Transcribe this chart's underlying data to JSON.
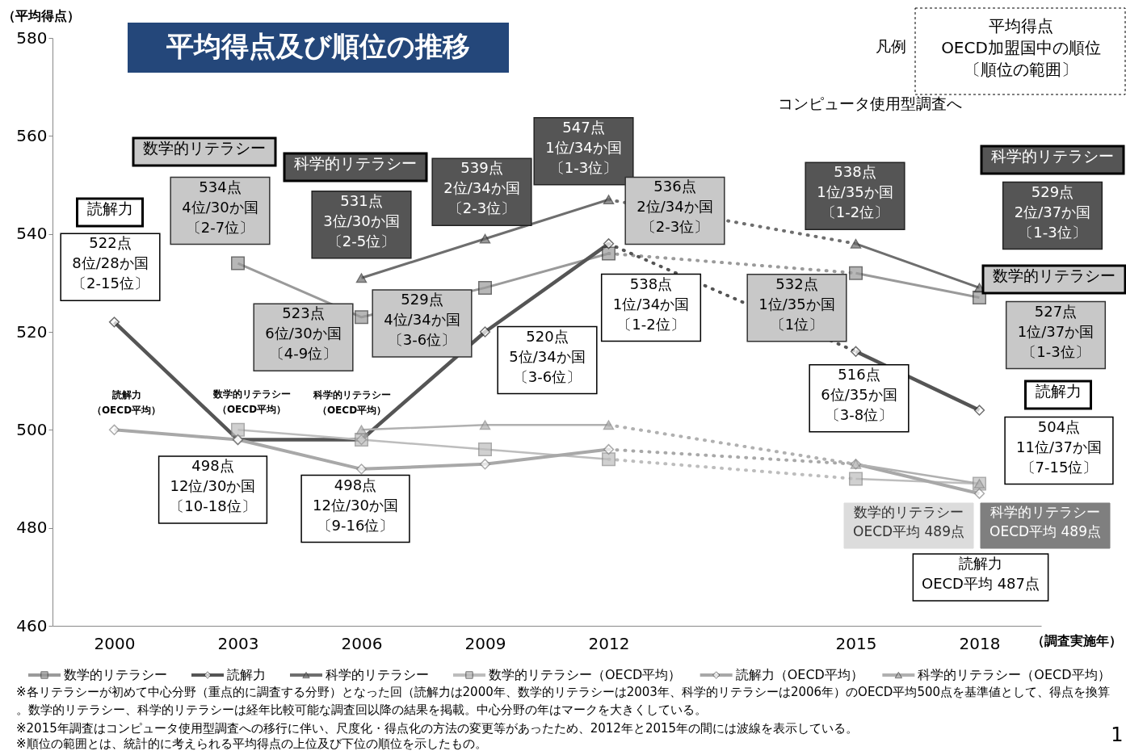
{
  "chart_data": {
    "type": "line",
    "title": "平均得点及び順位の推移",
    "ylabel": "（平均得点）",
    "xlabel": "（調査実施年）",
    "categories": [
      "2000",
      "2003",
      "2006",
      "2009",
      "2012",
      null,
      "2015",
      "2018"
    ],
    "ylim": [
      460,
      580
    ],
    "yticks": [
      460,
      480,
      500,
      520,
      540,
      560,
      580
    ],
    "grid": false,
    "legend": "bottom",
    "series": [
      {
        "name": "数学的リテラシー",
        "color": "#9a9a9a",
        "marker": "square",
        "values": [
          null,
          534,
          523,
          529,
          536,
          null,
          532,
          527
        ]
      },
      {
        "name": "読解力",
        "color": "#555555",
        "marker": "diamond",
        "values": [
          522,
          498,
          498,
          520,
          538,
          null,
          516,
          504
        ]
      },
      {
        "name": "科学的リテラシー",
        "color": "#6e6e6e",
        "marker": "triangle",
        "values": [
          null,
          null,
          531,
          539,
          547,
          null,
          538,
          529
        ]
      },
      {
        "name": "数学的リテラシー（OECD平均）",
        "color": "#bdbdbd",
        "marker": "square",
        "values": [
          null,
          500,
          498,
          496,
          494,
          null,
          490,
          489
        ]
      },
      {
        "name": "読解力（OECD平均）",
        "color": "#a8a8a8",
        "marker": "diamond",
        "values": [
          500,
          498,
          492,
          493,
          496,
          null,
          493,
          487
        ]
      },
      {
        "name": "科学的リテラシー（OECD平均）",
        "color": "#b0b0b0",
        "marker": "triangle",
        "values": [
          null,
          null,
          500,
          501,
          501,
          null,
          493,
          489
        ]
      }
    ],
    "annotations": [
      {
        "text": "522点8位/28か国〔2-15位〕",
        "x": "2000",
        "y": 522
      },
      {
        "text": "534点4位/30か国〔2-7位〕",
        "x": "2003",
        "y": 534
      },
      {
        "text": "498点12位/30か国〔10-18位〕",
        "x": "2003",
        "y": 498
      },
      {
        "text": "523点6位/30か国〔4-9位〕",
        "x": "2006",
        "y": 523
      },
      {
        "text": "531点3位/30か国〔2-5位〕",
        "x": "2006",
        "y": 531
      },
      "498点12位/30か国〔9-16位〕",
      {
        "text": "529点4位/34か国〔3-6位〕",
        "x": "2009",
        "y": 529
      },
      {
        "text": "539点2位/34か国〔2-3位〕",
        "x": "2009",
        "y": 539
      },
      {
        "text": "520点5位/34か国〔3-6位〕",
        "x": "2009",
        "y": 520
      },
      {
        "text": "547点1位/34か国〔1-3位〕",
        "x": "2012",
        "y": 547
      },
      {
        "text": "536点2位/34か国〔2-3位〕",
        "x": "2012",
        "y": 536
      },
      "538点1位/34か国〔1-2位〕",
      {
        "text": "538点1位/35か国〔1-2位〕",
        "x": "2015",
        "y": 538
      },
      {
        "text": "532点1位/35か国〔1位〕",
        "x": "2015",
        "y": 532
      },
      {
        "text": "516点6位/35か国〔3-8位〕",
        "x": "2015",
        "y": 516
      },
      "529点2位/37か国〔1-3位〕",
      "527点1位/37か国〔1-3位〕",
      "504点11位/37か国〔7-15位〕",
      "数学的リテラシーOECD平均 489点",
      "科学的リテラシーOECD平均 489点",
      "読解力OECD平均 487点",
      "読解力",
      "数学的リテラシー",
      "科学的リテラシー",
      "科学的リテラシー",
      "数学的リテラシー",
      "読解力",
      {
        "text": "読解力（OECD平均）",
        "x": "2000",
        "y": 500
      },
      {
        "text": "数学的リテラシー（OECD平均）",
        "x": "2003",
        "y": 500
      },
      {
        "text": "科学的リテラシー（OECD平均）",
        "x": "2006",
        "y": 500
      },
      "凡例",
      "平均得点OECD加盟国中の順位〔順位の範囲〕",
      "コンピュータ使用型調査へ",
      "※各リテラシーが初めて中心分野（重点的に調査する分野）となった回（読解力は2000年、数学的リテラシーは2003年、科学的リテラシーは2006年）のOECD平均500点を基準値として、得点を換算。数学的リテラシー、科学的リテラシーは経年比較可能な調査回以降の結果を掲載。中心分野の年はマークを大きくしている。",
      "※2015年調査はコンピュータ使用型調査への移行に伴い、尺度化・得点化の方法の変更等があったため、2012年と2015年の間には波線を表示している。",
      "※順位の範囲とは、統計的に考えられる平均得点の上位及び下位の順位を示したもの。",
      "1"
    ]
  }
}
